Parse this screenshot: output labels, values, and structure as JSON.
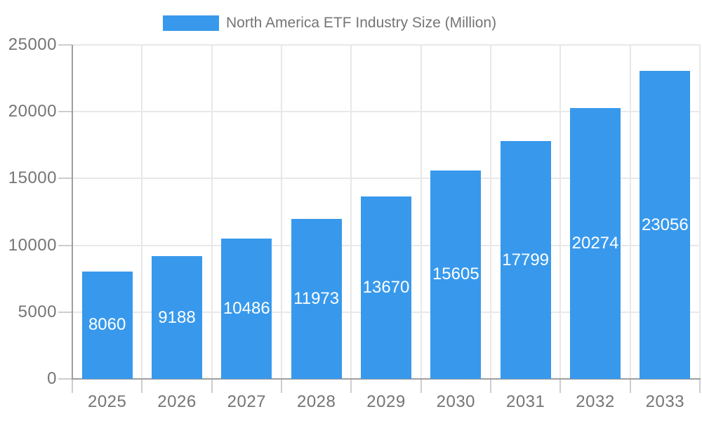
{
  "chart_data": {
    "type": "bar",
    "legend": {
      "label": "North America ETF Industry Size (Million)",
      "position": "top"
    },
    "categories": [
      "2025",
      "2026",
      "2027",
      "2028",
      "2029",
      "2030",
      "2031",
      "2032",
      "2033"
    ],
    "values": [
      8060,
      9188,
      10486,
      11973,
      13670,
      15605,
      17799,
      20274,
      23056
    ],
    "value_labels": [
      "8060",
      "9188",
      "10486",
      "11973",
      "13670",
      "15605",
      "17799",
      "20274",
      "23056"
    ],
    "value_labels_visible": true,
    "title": "",
    "xlabel": "",
    "ylabel": "",
    "ylim": [
      0,
      25000
    ],
    "yticks": [
      0,
      5000,
      10000,
      15000,
      20000,
      25000
    ],
    "grid": true,
    "colors": {
      "bar": "#3899EC",
      "value_label_text": "#FFFFFF",
      "axis_text": "#757575",
      "grid_line": "#E8E8E8",
      "tick_mark": "#CDCDCD",
      "axis_line": "#9E9E9E",
      "background": "#FFFFFF"
    }
  }
}
